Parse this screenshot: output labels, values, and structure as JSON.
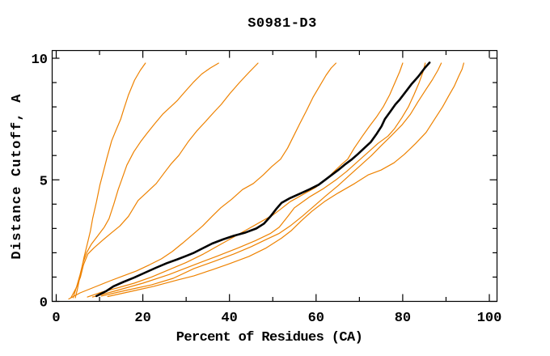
{
  "window": {
    "background": "#ffffff"
  },
  "chart_data": {
    "type": "line",
    "title": "S0981-D3",
    "xlabel": "Percent of Residues (CA)",
    "ylabel": "Distance Cutoff, A",
    "xlim": [
      0,
      100
    ],
    "ylim": [
      0,
      10
    ],
    "x_major_ticks": [
      0,
      20,
      40,
      60,
      80,
      100
    ],
    "x_minor_ticks": [
      10,
      30,
      50,
      70,
      90
    ],
    "x_tick_labels": [
      "0",
      "20",
      "40",
      "60",
      "80",
      "100"
    ],
    "y_major_ticks": [
      0,
      5,
      10
    ],
    "y_minor_ticks": [
      1,
      2,
      3,
      4,
      6,
      7,
      8,
      9
    ],
    "y_tick_labels": [
      "0",
      "5",
      "10"
    ],
    "grid": false,
    "legend": "none",
    "frame": "box",
    "colors": {
      "model": "#ee8200",
      "highlight": "#000000",
      "frame": "#000000"
    },
    "series": [
      {
        "name": "model-1",
        "role": "model",
        "color": "#ee8200",
        "width": 1.2,
        "points": [
          [
            4.4,
            0.15
          ],
          [
            4.9,
            0.5
          ],
          [
            5.4,
            0.95
          ],
          [
            5.9,
            1.35
          ],
          [
            6.4,
            1.8
          ],
          [
            7.1,
            2.3
          ],
          [
            7.9,
            2.9
          ],
          [
            8.4,
            3.4
          ],
          [
            9.3,
            4.1
          ],
          [
            10.1,
            4.8
          ],
          [
            10.7,
            5.2
          ],
          [
            11.7,
            5.9
          ],
          [
            12.8,
            6.6
          ],
          [
            13.7,
            7.0
          ],
          [
            14.9,
            7.5
          ],
          [
            15.6,
            7.9
          ],
          [
            16.7,
            8.5
          ],
          [
            18.1,
            9.1
          ],
          [
            19.4,
            9.5
          ],
          [
            20.6,
            9.8
          ]
        ]
      },
      {
        "name": "model-2",
        "role": "model",
        "color": "#ee8200",
        "width": 1.2,
        "points": [
          [
            3.9,
            0.15
          ],
          [
            4.7,
            0.6
          ],
          [
            5.5,
            1.1
          ],
          [
            6.2,
            1.6
          ],
          [
            7.0,
            2.0
          ],
          [
            8.1,
            2.35
          ],
          [
            9.6,
            2.7
          ],
          [
            11.1,
            3.05
          ],
          [
            12.2,
            3.4
          ],
          [
            13.3,
            4.0
          ],
          [
            14.3,
            4.6
          ],
          [
            15.1,
            5.0
          ],
          [
            16.3,
            5.6
          ],
          [
            17.9,
            6.15
          ],
          [
            19.6,
            6.6
          ],
          [
            20.9,
            6.9
          ],
          [
            22.7,
            7.3
          ],
          [
            24.6,
            7.7
          ],
          [
            26.4,
            8.0
          ],
          [
            27.9,
            8.25
          ],
          [
            29.6,
            8.6
          ],
          [
            31.6,
            9.0
          ],
          [
            33.6,
            9.35
          ],
          [
            35.6,
            9.6
          ],
          [
            37.5,
            9.8
          ]
        ]
      },
      {
        "name": "model-3",
        "role": "model",
        "color": "#ee8200",
        "width": 1.2,
        "points": [
          [
            3.4,
            0.15
          ],
          [
            4.6,
            0.55
          ],
          [
            5.6,
            1.0
          ],
          [
            6.3,
            1.5
          ],
          [
            7.3,
            1.95
          ],
          [
            8.7,
            2.2
          ],
          [
            10.6,
            2.5
          ],
          [
            12.6,
            2.8
          ],
          [
            14.7,
            3.1
          ],
          [
            16.7,
            3.5
          ],
          [
            18.9,
            4.15
          ],
          [
            21.0,
            4.5
          ],
          [
            23.1,
            4.85
          ],
          [
            25.0,
            5.3
          ],
          [
            26.5,
            5.65
          ],
          [
            28.3,
            6.0
          ],
          [
            30.6,
            6.6
          ],
          [
            32.4,
            7.0
          ],
          [
            34.5,
            7.4
          ],
          [
            36.5,
            7.8
          ],
          [
            38.1,
            8.1
          ],
          [
            40.1,
            8.55
          ],
          [
            42.3,
            9.0
          ],
          [
            44.4,
            9.4
          ],
          [
            46.6,
            9.8
          ]
        ]
      },
      {
        "name": "model-4",
        "role": "model",
        "color": "#ee8200",
        "width": 1.2,
        "points": [
          [
            2.9,
            0.1
          ],
          [
            5.5,
            0.35
          ],
          [
            9.0,
            0.6
          ],
          [
            12.5,
            0.85
          ],
          [
            15.5,
            1.05
          ],
          [
            18.5,
            1.25
          ],
          [
            21.5,
            1.5
          ],
          [
            24.3,
            1.75
          ],
          [
            26.8,
            2.05
          ],
          [
            29.2,
            2.4
          ],
          [
            31.5,
            2.75
          ],
          [
            33.8,
            3.1
          ],
          [
            36.0,
            3.5
          ],
          [
            38.0,
            3.85
          ],
          [
            40.5,
            4.2
          ],
          [
            43.0,
            4.6
          ],
          [
            45.5,
            4.85
          ],
          [
            47.8,
            5.2
          ],
          [
            49.8,
            5.55
          ],
          [
            51.8,
            5.85
          ],
          [
            53.4,
            6.3
          ],
          [
            54.8,
            6.8
          ],
          [
            56.2,
            7.3
          ],
          [
            57.8,
            7.85
          ],
          [
            59.3,
            8.4
          ],
          [
            60.8,
            8.85
          ],
          [
            62.3,
            9.3
          ],
          [
            63.5,
            9.6
          ],
          [
            64.6,
            9.8
          ]
        ]
      },
      {
        "name": "model-5",
        "role": "model",
        "color": "#ee8200",
        "width": 1.2,
        "points": [
          [
            7.2,
            0.18
          ],
          [
            10.5,
            0.38
          ],
          [
            14.0,
            0.55
          ],
          [
            18.0,
            0.75
          ],
          [
            22.0,
            1.0
          ],
          [
            26.0,
            1.3
          ],
          [
            30.0,
            1.6
          ],
          [
            34.0,
            1.95
          ],
          [
            37.5,
            2.3
          ],
          [
            41.0,
            2.65
          ],
          [
            44.5,
            3.0
          ],
          [
            47.5,
            3.3
          ],
          [
            50.0,
            3.55
          ],
          [
            51.5,
            3.75
          ],
          [
            54.0,
            4.1
          ],
          [
            57.0,
            4.4
          ],
          [
            60.0,
            4.7
          ],
          [
            62.5,
            5.05
          ],
          [
            64.5,
            5.4
          ],
          [
            66.0,
            5.65
          ],
          [
            67.3,
            5.85
          ],
          [
            68.8,
            6.3
          ],
          [
            70.7,
            6.8
          ],
          [
            72.3,
            7.2
          ],
          [
            74.0,
            7.6
          ],
          [
            75.5,
            8.0
          ],
          [
            77.0,
            8.5
          ],
          [
            78.2,
            9.0
          ],
          [
            79.3,
            9.45
          ],
          [
            80.0,
            9.8
          ]
        ]
      },
      {
        "name": "model-6",
        "role": "model",
        "color": "#ee8200",
        "width": 1.2,
        "points": [
          [
            8.4,
            0.18
          ],
          [
            14.0,
            0.45
          ],
          [
            20.0,
            0.75
          ],
          [
            26.0,
            1.1
          ],
          [
            31.8,
            1.5
          ],
          [
            37.0,
            1.85
          ],
          [
            42.0,
            2.2
          ],
          [
            46.0,
            2.5
          ],
          [
            49.5,
            2.8
          ],
          [
            51.5,
            3.05
          ],
          [
            53.5,
            3.5
          ],
          [
            55.0,
            3.85
          ],
          [
            58.5,
            4.3
          ],
          [
            61.8,
            4.65
          ],
          [
            64.6,
            5.0
          ],
          [
            67.1,
            5.35
          ],
          [
            69.6,
            5.75
          ],
          [
            71.8,
            6.1
          ],
          [
            74.3,
            6.5
          ],
          [
            76.6,
            6.8
          ],
          [
            78.1,
            7.1
          ],
          [
            79.8,
            7.55
          ],
          [
            81.3,
            8.0
          ],
          [
            82.6,
            8.5
          ],
          [
            83.8,
            9.0
          ],
          [
            84.7,
            9.45
          ],
          [
            85.2,
            9.8
          ]
        ]
      },
      {
        "name": "model-7",
        "role": "model",
        "color": "#ee8200",
        "width": 1.2,
        "points": [
          [
            10.4,
            0.22
          ],
          [
            16.0,
            0.45
          ],
          [
            22.0,
            0.68
          ],
          [
            27.0,
            0.95
          ],
          [
            31.8,
            1.35
          ],
          [
            36.5,
            1.65
          ],
          [
            41.0,
            1.95
          ],
          [
            45.0,
            2.25
          ],
          [
            48.5,
            2.55
          ],
          [
            51.5,
            2.8
          ],
          [
            54.0,
            3.1
          ],
          [
            56.8,
            3.5
          ],
          [
            59.4,
            3.9
          ],
          [
            62.3,
            4.35
          ],
          [
            65.0,
            4.75
          ],
          [
            67.8,
            5.2
          ],
          [
            70.3,
            5.6
          ],
          [
            72.8,
            6.0
          ],
          [
            75.0,
            6.4
          ],
          [
            77.3,
            6.8
          ],
          [
            79.8,
            7.25
          ],
          [
            81.8,
            7.7
          ],
          [
            83.5,
            8.2
          ],
          [
            85.3,
            8.7
          ],
          [
            86.8,
            9.1
          ],
          [
            88.1,
            9.5
          ],
          [
            88.9,
            9.8
          ]
        ]
      },
      {
        "name": "model-8",
        "role": "model",
        "color": "#ee8200",
        "width": 1.2,
        "points": [
          [
            11.9,
            0.2
          ],
          [
            17.0,
            0.4
          ],
          [
            22.5,
            0.62
          ],
          [
            28.0,
            0.88
          ],
          [
            31.8,
            1.05
          ],
          [
            36.0,
            1.3
          ],
          [
            40.0,
            1.55
          ],
          [
            44.5,
            1.85
          ],
          [
            48.5,
            2.2
          ],
          [
            52.0,
            2.6
          ],
          [
            54.2,
            2.9
          ],
          [
            56.5,
            3.3
          ],
          [
            59.0,
            3.7
          ],
          [
            61.9,
            4.1
          ],
          [
            65.0,
            4.45
          ],
          [
            68.9,
            4.85
          ],
          [
            72.0,
            5.2
          ],
          [
            75.0,
            5.4
          ],
          [
            78.0,
            5.7
          ],
          [
            80.4,
            6.05
          ],
          [
            83.0,
            6.5
          ],
          [
            85.4,
            6.95
          ],
          [
            87.4,
            7.5
          ],
          [
            89.2,
            8.0
          ],
          [
            90.6,
            8.45
          ],
          [
            91.9,
            8.85
          ],
          [
            92.9,
            9.25
          ],
          [
            93.7,
            9.55
          ],
          [
            94.1,
            9.8
          ]
        ]
      },
      {
        "name": "highlighted-model",
        "role": "highlight",
        "color": "#000000",
        "width": 2.6,
        "points": [
          [
            9.3,
            0.22
          ],
          [
            11.5,
            0.42
          ],
          [
            13.2,
            0.62
          ],
          [
            15.5,
            0.8
          ],
          [
            18.0,
            0.98
          ],
          [
            20.5,
            1.18
          ],
          [
            23.0,
            1.38
          ],
          [
            25.5,
            1.57
          ],
          [
            28.0,
            1.73
          ],
          [
            30.0,
            1.87
          ],
          [
            31.8,
            2.0
          ],
          [
            34.0,
            2.2
          ],
          [
            36.0,
            2.38
          ],
          [
            38.5,
            2.55
          ],
          [
            41.0,
            2.7
          ],
          [
            43.5,
            2.82
          ],
          [
            46.2,
            3.0
          ],
          [
            48.0,
            3.2
          ],
          [
            49.5,
            3.5
          ],
          [
            50.8,
            3.8
          ],
          [
            52.0,
            4.05
          ],
          [
            54.0,
            4.25
          ],
          [
            56.5,
            4.45
          ],
          [
            58.6,
            4.62
          ],
          [
            60.6,
            4.8
          ],
          [
            62.1,
            5.0
          ],
          [
            63.6,
            5.2
          ],
          [
            65.1,
            5.4
          ],
          [
            66.6,
            5.62
          ],
          [
            68.1,
            5.82
          ],
          [
            69.6,
            6.05
          ],
          [
            71.1,
            6.3
          ],
          [
            72.6,
            6.55
          ],
          [
            74.0,
            6.9
          ],
          [
            75.1,
            7.2
          ],
          [
            75.9,
            7.5
          ],
          [
            77.1,
            7.8
          ],
          [
            78.3,
            8.1
          ],
          [
            79.3,
            8.3
          ],
          [
            80.6,
            8.6
          ],
          [
            82.1,
            8.95
          ],
          [
            83.6,
            9.25
          ],
          [
            85.1,
            9.6
          ],
          [
            86.2,
            9.82
          ]
        ]
      }
    ]
  }
}
